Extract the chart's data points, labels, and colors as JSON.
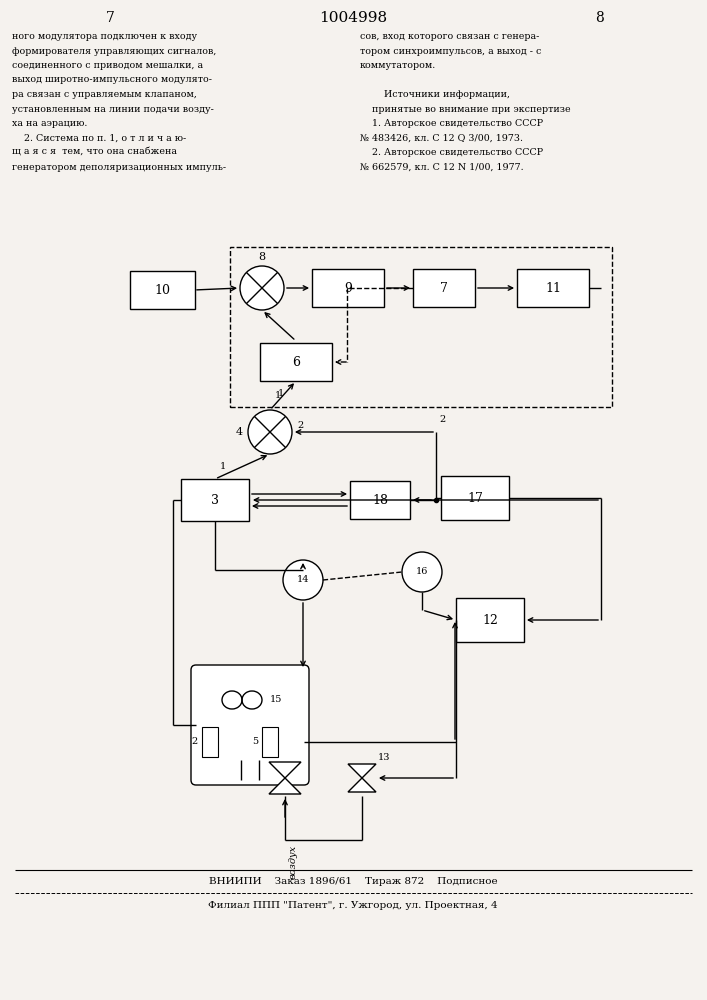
{
  "title": "1004998",
  "page_left": "7",
  "page_right": "8",
  "text_left": "ного модулятора подключен к входу\nформирователя управляющих сигналов,\nсоединенного с приводом мешалки, а\nвыход широтно-импульсного модулято-\nра связан с управляемым клапаном,\nустановленным на линии подачи возду-\nха на аэрацию.\n    2. Система по п. 1, о т л и ч а ю-\nщ а я с я  тем, что она снабжена\nгенератором деполяризационных импуль-",
  "text_right": "сов, вход которого связан с генера-\nтором синхроимпульсов, а выход - с\nкоммутатором.\n\n        Источники информации,\n    принятые во внимание при экспертизе\n    1. Авторское свидетельство СССР\n№ 483426, кл. С 12 Q 3/00, 1973.\n    2. Авторское свидетельство СССР\n№ 662579, кл. С 12 N 1/00, 1977.",
  "footer_line1": "ВНИИПИ    Заказ 1896/61    Тираж 872    Подписное",
  "footer_line2": "Филиал ППП \"Патент\", г. Ужгород, ул. Проектная, 4",
  "bg": "#f5f2ee"
}
